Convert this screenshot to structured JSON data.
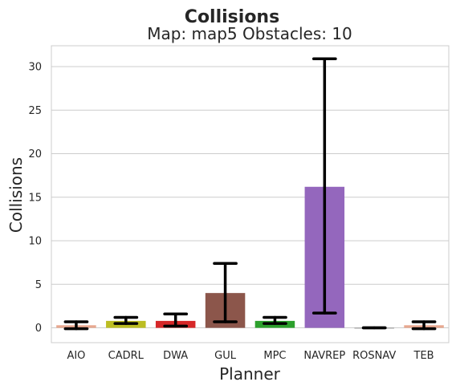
{
  "chart_data": {
    "type": "bar",
    "title": "Collisions",
    "subtitle": "Map: map5 Obstacles: 10",
    "xlabel": "Planner",
    "ylabel": "Collisions",
    "ylim": [
      -1.7,
      32.4
    ],
    "yticks": [
      0,
      5,
      10,
      15,
      20,
      25,
      30
    ],
    "grid": "y",
    "categories": [
      "AIO",
      "CADRL",
      "DWA",
      "GUL",
      "MPC",
      "NAVREP",
      "ROSNAV",
      "TEB"
    ],
    "values": [
      0.3,
      0.8,
      0.8,
      4.0,
      0.8,
      16.2,
      0.0,
      0.3
    ],
    "error_low": [
      -0.1,
      0.5,
      0.2,
      0.7,
      0.5,
      1.7,
      0.0,
      -0.1
    ],
    "error_high": [
      0.7,
      1.2,
      1.6,
      7.4,
      1.2,
      30.9,
      0.0,
      0.7
    ],
    "colors": [
      "#e8a890",
      "#bcbd22",
      "#d62728",
      "#8c564b",
      "#2ca02c",
      "#9467bd",
      "#7f7f7f",
      "#e8a890"
    ]
  }
}
